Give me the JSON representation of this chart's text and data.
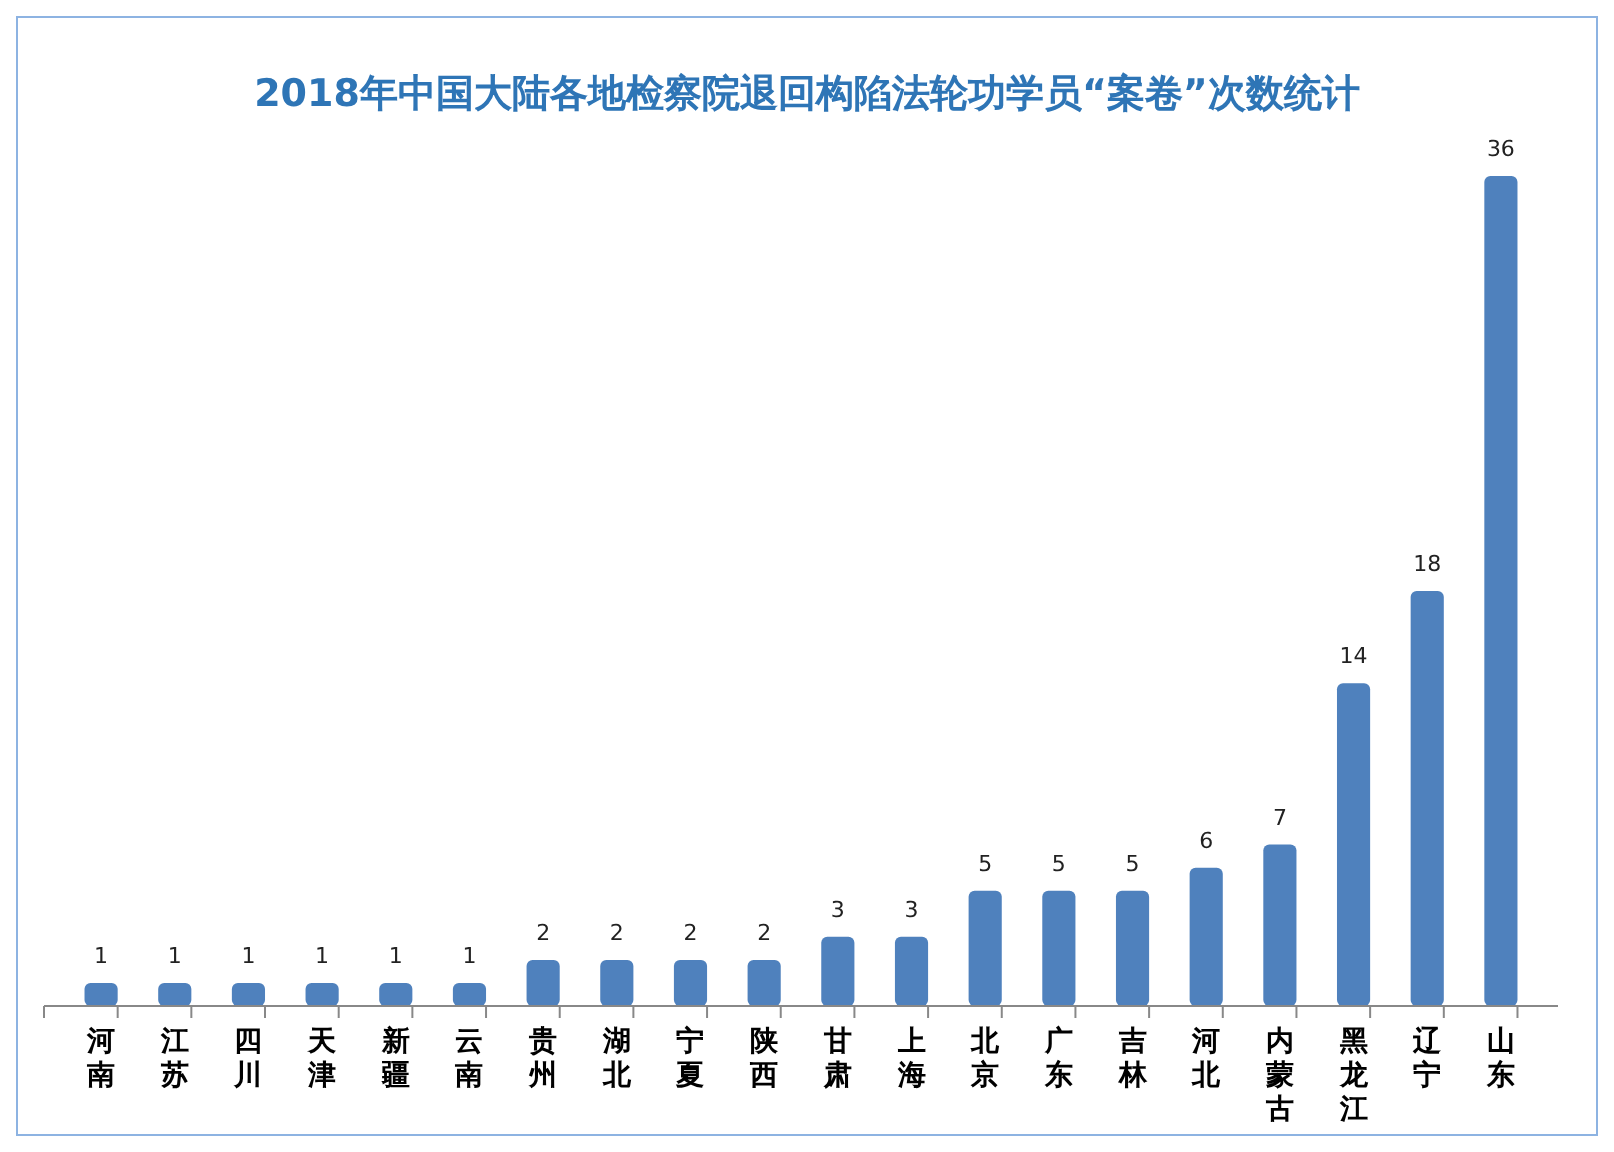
{
  "chart_data": {
    "type": "bar",
    "title": "2018年中国大陆各地检察院退回构陷法轮功学员“案卷”次数统计",
    "categories": [
      "河南",
      "江苏",
      "四川",
      "天津",
      "新疆",
      "云南",
      "贵州",
      "湖北",
      "宁夏",
      "陕西",
      "甘肃",
      "上海",
      "北京",
      "广东",
      "吉林",
      "河北",
      "内蒙古",
      "黑龙江",
      "辽宁",
      "山东"
    ],
    "values": [
      1,
      1,
      1,
      1,
      1,
      1,
      2,
      2,
      2,
      2,
      3,
      3,
      5,
      5,
      5,
      6,
      7,
      14,
      18,
      36
    ],
    "color": "#4f81bd",
    "data_labels": true
  }
}
